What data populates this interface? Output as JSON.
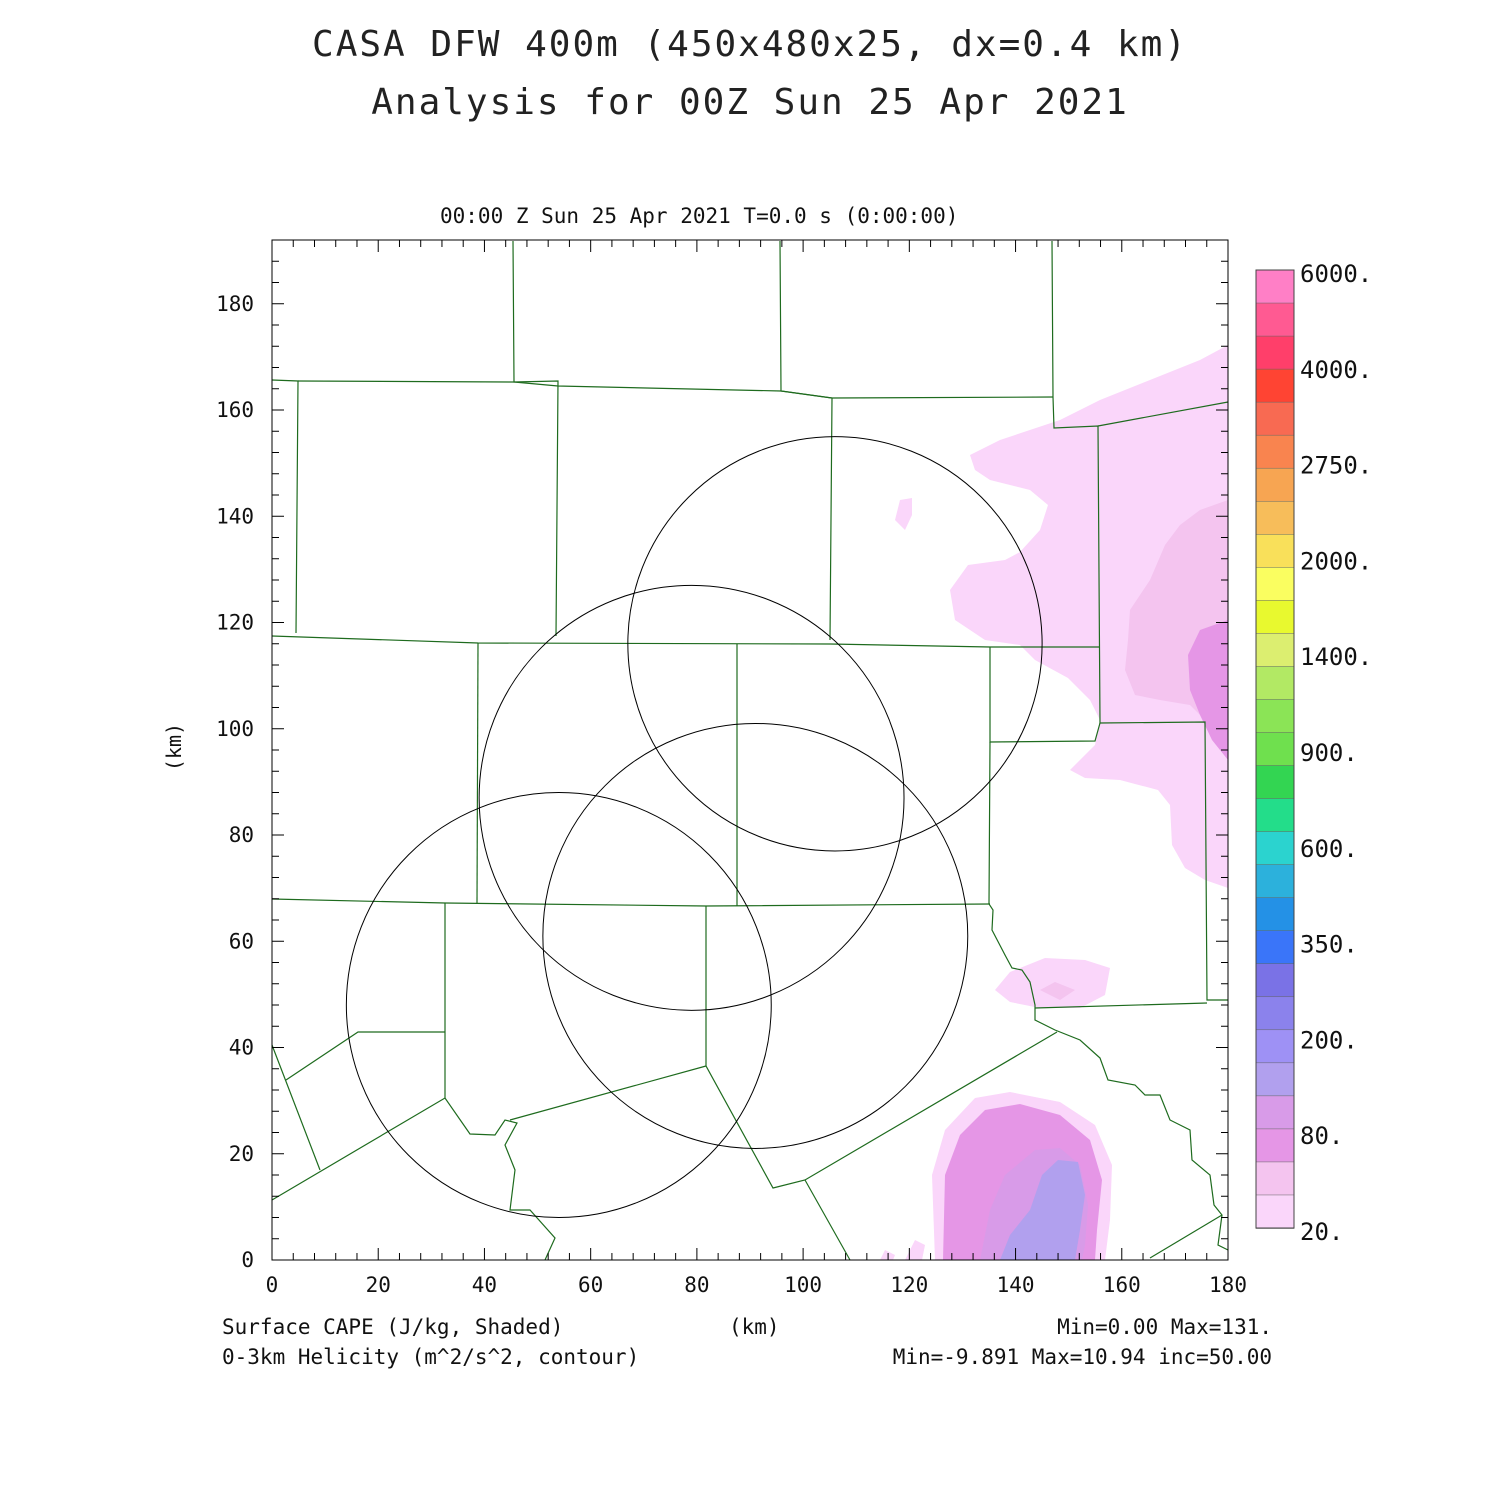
{
  "titles": {
    "line1": "CASA DFW 400m (450x480x25, dx=0.4 km)",
    "line2": "Analysis for 00Z Sun 25 Apr 2021"
  },
  "plot_header": "00:00 Z Sun 25 Apr 2021   T=0.0 s (0:00:00)",
  "axes": {
    "x_label": "(km)",
    "y_label": "(km)",
    "x_range": [
      0,
      180
    ],
    "y_range": [
      0,
      192
    ],
    "x_ticks": [
      "0",
      "20",
      "40",
      "60",
      "80",
      "100",
      "120",
      "140",
      "160",
      "180"
    ],
    "y_ticks": [
      "0",
      "20",
      "40",
      "60",
      "80",
      "100",
      "120",
      "140",
      "160",
      "180"
    ]
  },
  "footer": {
    "field1": "Surface CAPE (J/kg, Shaded)",
    "field2": "0-3km Helicity (m^2/s^2, contour)",
    "units": "(km)",
    "stats1": "Min=0.00 Max=131.",
    "stats2": "Min=-9.891 Max=10.94 inc=50.00"
  },
  "colorbar": {
    "labels": [
      "6000.",
      "4000.",
      "2750.",
      "2000.",
      "1400.",
      "900.",
      "600.",
      "350.",
      "200.",
      "80.",
      "20."
    ],
    "colors": [
      "#ff7fc6",
      "#ff5a92",
      "#ff3f6a",
      "#ff4433",
      "#f86a52",
      "#f9844f",
      "#f7a552",
      "#f7bd5a",
      "#f9e05a",
      "#fafe60",
      "#e8f92f",
      "#dcee70",
      "#b2e964",
      "#8be456",
      "#6fe04e",
      "#33d552",
      "#23dd8a",
      "#2bd3cf",
      "#2cb1dc",
      "#2491e6",
      "#3a75f9",
      "#7a72e6",
      "#8b82ec",
      "#9e91f5",
      "#b1a0ee",
      "#d89be8",
      "#e596e6",
      "#f4c4ef",
      "#fad6fa"
    ]
  },
  "chart_data": {
    "type": "heatmap",
    "field": "Surface CAPE (J/kg)",
    "range": {
      "min": 0.0,
      "max": 131.0
    },
    "contour_field": "0-3km Helicity (m^2/s^2)",
    "contour_range": {
      "min": -9.891,
      "max": 10.94,
      "inc": 50.0
    },
    "range_rings_km": [
      {
        "center": [
          106,
          116
        ],
        "radius": 39
      },
      {
        "center": [
          79,
          87
        ],
        "radius": 40
      },
      {
        "center": [
          91,
          61
        ],
        "radius": 40
      },
      {
        "center": [
          54,
          48
        ],
        "radius": 40
      }
    ]
  }
}
